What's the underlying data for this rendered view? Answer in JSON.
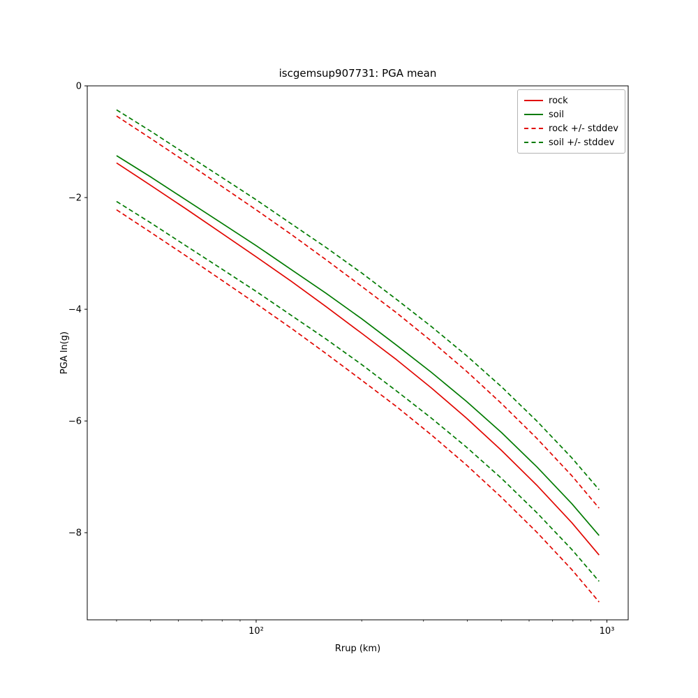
{
  "chart_data": {
    "type": "line",
    "title": "iscgemsup907731: PGA mean",
    "xlabel": "Rrup (km)",
    "ylabel": "PGA ln(g)",
    "xscale": "log",
    "xlim": [
      33,
      1150
    ],
    "ylim": [
      -9.56,
      0
    ],
    "grid": false,
    "legend_position": "upper right",
    "colors": {
      "rock": "#e10600",
      "soil": "#007a00"
    },
    "x": [
      40,
      50,
      63,
      79,
      100,
      126,
      158,
      200,
      251,
      316,
      398,
      501,
      631,
      794,
      950
    ],
    "series": [
      {
        "name": "rock-mean",
        "color": "#e10600",
        "dash": false,
        "values": [
          -1.38,
          -1.78,
          -2.2,
          -2.62,
          -3.06,
          -3.5,
          -3.95,
          -4.43,
          -4.9,
          -5.41,
          -5.95,
          -6.53,
          -7.15,
          -7.82,
          -8.4
        ]
      },
      {
        "name": "soil-mean",
        "color": "#007a00",
        "dash": false,
        "values": [
          -1.25,
          -1.63,
          -2.04,
          -2.44,
          -2.86,
          -3.29,
          -3.71,
          -4.17,
          -4.64,
          -5.13,
          -5.65,
          -6.21,
          -6.82,
          -7.48,
          -8.05
        ]
      },
      {
        "name": "rock-plus-stddev",
        "color": "#e10600",
        "dash": true,
        "values": [
          -0.54,
          -0.94,
          -1.36,
          -1.78,
          -2.22,
          -2.66,
          -3.11,
          -3.59,
          -4.06,
          -4.57,
          -5.11,
          -5.69,
          -6.31,
          -6.98,
          -7.56
        ]
      },
      {
        "name": "rock-minus-stddev",
        "color": "#e10600",
        "dash": true,
        "values": [
          -2.22,
          -2.62,
          -3.04,
          -3.46,
          -3.9,
          -4.34,
          -4.79,
          -5.27,
          -5.74,
          -6.25,
          -6.79,
          -7.37,
          -7.99,
          -8.66,
          -9.24
        ]
      },
      {
        "name": "soil-plus-stddev",
        "color": "#007a00",
        "dash": true,
        "values": [
          -0.43,
          -0.81,
          -1.22,
          -1.62,
          -2.04,
          -2.47,
          -2.89,
          -3.35,
          -3.82,
          -4.31,
          -4.83,
          -5.39,
          -6.0,
          -6.66,
          -7.23
        ]
      },
      {
        "name": "soil-minus-stddev",
        "color": "#007a00",
        "dash": true,
        "values": [
          -2.07,
          -2.45,
          -2.86,
          -3.26,
          -3.68,
          -4.11,
          -4.53,
          -4.99,
          -5.46,
          -5.95,
          -6.47,
          -7.03,
          -7.64,
          -8.3,
          -8.87
        ]
      }
    ],
    "stddev": {
      "rock": 0.84,
      "soil": 0.82
    },
    "legend": [
      {
        "label": "rock",
        "color": "#e10600",
        "dash": false
      },
      {
        "label": "soil",
        "color": "#007a00",
        "dash": false
      },
      {
        "label": "rock +/- stddev",
        "color": "#e10600",
        "dash": true
      },
      {
        "label": "soil +/- stddev",
        "color": "#007a00",
        "dash": true
      }
    ],
    "xticks": [
      {
        "v": 100,
        "label": "10²"
      },
      {
        "v": 1000,
        "label": "10³"
      }
    ],
    "yticks": [
      {
        "v": 0,
        "label": "0"
      },
      {
        "v": -2,
        "label": "−2"
      },
      {
        "v": -4,
        "label": "−4"
      },
      {
        "v": -6,
        "label": "−6"
      },
      {
        "v": -8,
        "label": "−8"
      }
    ]
  }
}
